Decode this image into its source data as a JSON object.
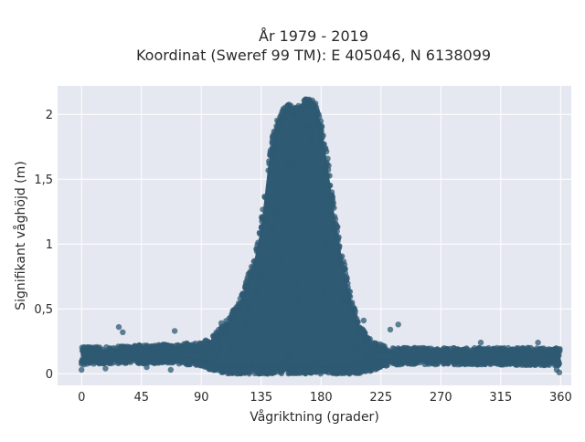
{
  "chart_data": {
    "type": "scatter",
    "title": "År 1979 - 2019",
    "subtitle": "Koordinat (Sweref 99 TM): E 405046, N 6138099",
    "xlabel": "Vågriktning (grader)",
    "ylabel": "Signifikant våghöjd (m)",
    "xlim": [
      -18,
      368
    ],
    "ylim": [
      -0.09,
      2.22
    ],
    "xticks": [
      0,
      45,
      90,
      135,
      180,
      225,
      270,
      315,
      360
    ],
    "xtick_labels": [
      "0",
      "45",
      "90",
      "135",
      "180",
      "225",
      "270",
      "315",
      "360"
    ],
    "yticks": [
      0,
      0.5,
      1,
      1.5,
      2
    ],
    "ytick_labels": [
      "0",
      "0,5",
      "1",
      "1,5",
      "2"
    ],
    "grid": true,
    "point_color": "#2f5a73",
    "background": "#e5e8f0",
    "envelope": {
      "description_direction_deg": [
        0,
        20,
        45,
        70,
        90,
        100,
        110,
        120,
        130,
        135,
        140,
        145,
        150,
        155,
        160,
        165,
        170,
        175,
        180,
        185,
        190,
        195,
        200,
        205,
        210,
        220,
        230,
        240,
        270,
        315,
        360
      ],
      "lower_m": [
        0.07,
        0.08,
        0.08,
        0.08,
        0.06,
        0.02,
        0.0,
        0.0,
        0.0,
        0.0,
        0.0,
        0.0,
        0.0,
        0.0,
        0.0,
        0.0,
        0.0,
        0.0,
        0.0,
        0.0,
        0.0,
        0.0,
        0.0,
        0.0,
        0.0,
        0.03,
        0.06,
        0.07,
        0.07,
        0.07,
        0.06
      ],
      "upper_m": [
        0.21,
        0.21,
        0.22,
        0.23,
        0.24,
        0.3,
        0.42,
        0.6,
        0.9,
        1.15,
        1.6,
        1.9,
        2.02,
        2.08,
        2.05,
        2.1,
        2.13,
        2.1,
        1.95,
        1.62,
        1.25,
        0.95,
        0.7,
        0.5,
        0.36,
        0.24,
        0.21,
        0.2,
        0.2,
        0.2,
        0.2
      ]
    },
    "outliers": [
      {
        "x": 0,
        "y": 0.03
      },
      {
        "x": 28,
        "y": 0.36
      },
      {
        "x": 31,
        "y": 0.32
      },
      {
        "x": 70,
        "y": 0.33
      },
      {
        "x": 18,
        "y": 0.04
      },
      {
        "x": 49,
        "y": 0.05
      },
      {
        "x": 67,
        "y": 0.03
      },
      {
        "x": 238,
        "y": 0.38
      },
      {
        "x": 232,
        "y": 0.34
      },
      {
        "x": 300,
        "y": 0.24
      },
      {
        "x": 343,
        "y": 0.24
      },
      {
        "x": 357,
        "y": 0.03
      },
      {
        "x": 359,
        "y": 0.01
      },
      {
        "x": 105,
        "y": 0.39
      },
      {
        "x": 212,
        "y": 0.41
      }
    ]
  }
}
